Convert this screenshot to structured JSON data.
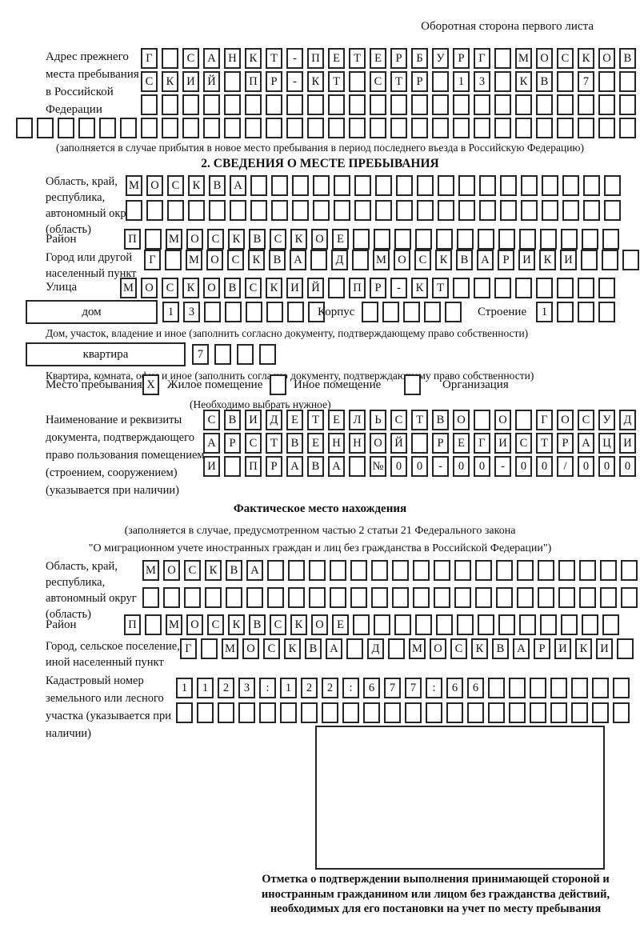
{
  "header": {
    "note": "Оборотная сторона первого листа"
  },
  "prev_address": {
    "label": "Адрес прежнего места пребывания в Российской Федерации",
    "rows": [
      {
        "text": "Г САНКТ-ПЕТЕРБУРГ МОСКОВ",
        "len": 24
      },
      {
        "text": "СКИЙ ПР-КТ СТР 13 КВ 7",
        "len": 24
      },
      {
        "text": "",
        "len": 24
      },
      {
        "text": "",
        "len": 30
      }
    ],
    "note": "(заполняется в случае прибытия в новое место пребывания в период последнего въезда в Российскую Федерацию)"
  },
  "section2": {
    "title": "2. СВЕДЕНИЯ О МЕСТЕ ПРЕБЫВАНИЯ",
    "region": {
      "label": "Область, край, республика, автономный округ (область)",
      "rows": [
        {
          "text": "МОСКВА",
          "len": 24
        },
        {
          "text": "",
          "len": 24
        }
      ]
    },
    "district": {
      "label": "Район",
      "row": {
        "text": "П МОСКВСКОЕ",
        "len": 24
      }
    },
    "city": {
      "label": "Город или другой населенный пункт",
      "row": {
        "text": "Г МОСКВА Д МОСКВАРИКИ",
        "len": 24
      }
    },
    "street": {
      "label": "Улица",
      "row": {
        "text": "МОСКОВСКИЙ ПР-КТ",
        "len": 24
      }
    },
    "house": {
      "box_label": "дом",
      "cells": {
        "text": "13",
        "len": 8
      },
      "korpus_label": "Корпус",
      "korpus_cells": {
        "text": "",
        "len": 5
      },
      "stroenie_label": "Строение",
      "stroenie_cells": {
        "text": "1",
        "len": 4
      },
      "caption": "Дом, участок, владение и иное (заполнить согласно документу, подтверждающему право собственности)"
    },
    "apartment": {
      "box_label": "квартира",
      "cells": {
        "text": "7",
        "len": 4
      },
      "caption": "Квартира, комната, офис и иное (заполнить согласно документу, подтверждающему право собственности)"
    },
    "stay_type": {
      "label": "Место пребывания:",
      "options": [
        {
          "label": "Жилое помещение",
          "mark": "X"
        },
        {
          "label": "Иное помещение",
          "mark": ""
        },
        {
          "label": "Организация",
          "mark": ""
        }
      ],
      "note": "(Необходимо выбрать нужное)"
    },
    "document": {
      "label": "Наименование и реквизиты документа, подтверждающего право пользования помещением (строением, сооружением) (указывается при наличии)",
      "rows": [
        {
          "text": "СВИДЕТЕЛЬСТВО О ГОСУД",
          "len": 21
        },
        {
          "text": "АРСТВЕННОЙ РЕГИСТРАЦИ",
          "len": 21
        },
        {
          "text": "И ПРАВА №00-00-00/000",
          "len": 21
        }
      ]
    }
  },
  "actual_location": {
    "title": "Фактическое место нахождения",
    "note_line1": "(заполняется в случае, предусмотренном частью 2 статьи 21 Федерального закона",
    "note_line2": "\"О миграционном учете иностранных граждан и лиц без гражданства в Российской Федерации\")",
    "region": {
      "label": "Область, край, республика, автономный округ (область)",
      "rows": [
        {
          "text": "МОСКВА",
          "len": 24
        },
        {
          "text": "",
          "len": 24
        }
      ]
    },
    "district": {
      "label": "Район",
      "row": {
        "text": "П МОСКВСКОЕ",
        "len": 24
      }
    },
    "settlement": {
      "label": "Город, сельское поселение, иной населенный пункт",
      "row": {
        "text": "Г МОСКВА Д МОСКВАРИКИ",
        "len": 22
      }
    },
    "cadastre": {
      "label": "Кадастровый номер земельного или лесного участка (указывается при наличии)",
      "rows": [
        {
          "text": "1123:122:677:66",
          "len": 22
        },
        {
          "text": "",
          "len": 22
        }
      ]
    },
    "stamp_caption": "Отметка о подтверждении выполнения принимающей стороной и иностранным гражданином или лицом без гражданства действий, необходимых для его постановки на учет по месту пребывания"
  }
}
